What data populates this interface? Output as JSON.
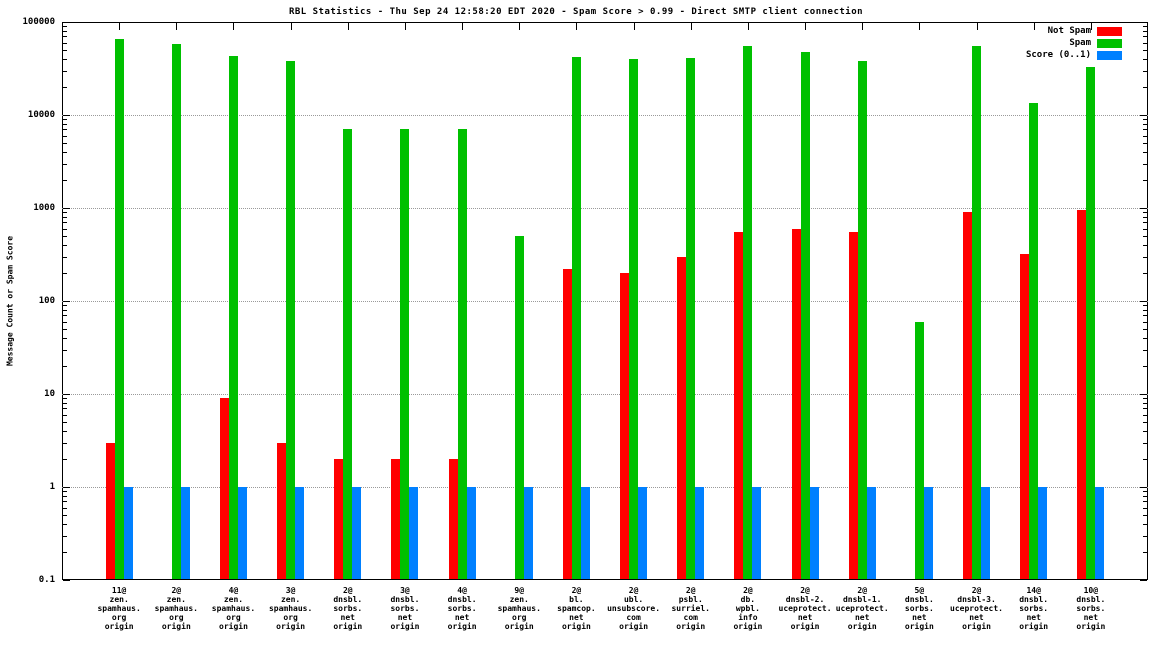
{
  "chart_data": {
    "type": "bar",
    "title": "RBL Statistics - Thu Sep 24 12:58:20 EDT 2020 - Spam Score > 0.99 - Direct SMTP client connection",
    "ylabel": "Message Count or Spam Score",
    "xlabel": "",
    "y_scale": "log",
    "ylim": [
      0.1,
      100000
    ],
    "yticks": [
      "0.1",
      "1",
      "10",
      "100",
      "1000",
      "10000",
      "100000"
    ],
    "grid": true,
    "legend_position": "top-right",
    "categories": [
      [
        "11@",
        "zen.",
        "spamhaus.",
        "org",
        "origin"
      ],
      [
        "2@",
        "zen.",
        "spamhaus.",
        "org",
        "origin"
      ],
      [
        "4@",
        "zen.",
        "spamhaus.",
        "org",
        "origin"
      ],
      [
        "3@",
        "zen.",
        "spamhaus.",
        "org",
        "origin"
      ],
      [
        "2@",
        "dnsbl.",
        "sorbs.",
        "net",
        "origin"
      ],
      [
        "3@",
        "dnsbl.",
        "sorbs.",
        "net",
        "origin"
      ],
      [
        "4@",
        "dnsbl.",
        "sorbs.",
        "net",
        "origin"
      ],
      [
        "9@",
        "zen.",
        "spamhaus.",
        "org",
        "origin"
      ],
      [
        "2@",
        "bl.",
        "spamcop.",
        "net",
        "origin"
      ],
      [
        "2@",
        "ubl.",
        "unsubscore.",
        "com",
        "origin"
      ],
      [
        "2@",
        "psbl.",
        "surriel.",
        "com",
        "origin"
      ],
      [
        "2@",
        "db.",
        "wpbl.",
        "info",
        "origin"
      ],
      [
        "2@",
        "dnsbl-2.",
        "uceprotect.",
        "net",
        "origin"
      ],
      [
        "2@",
        "dnsbl-1.",
        "uceprotect.",
        "net",
        "origin"
      ],
      [
        "5@",
        "dnsbl.",
        "sorbs.",
        "net",
        "origin"
      ],
      [
        "2@",
        "dnsbl-3.",
        "uceprotect.",
        "net",
        "origin"
      ],
      [
        "14@",
        "dnsbl.",
        "sorbs.",
        "net",
        "origin"
      ],
      [
        "10@",
        "dnsbl.",
        "sorbs.",
        "net",
        "origin"
      ]
    ],
    "series": [
      {
        "name": "Not Spam",
        "color": "#ff0000",
        "values": [
          3,
          0,
          9,
          3,
          2,
          2,
          2,
          0,
          220,
          200,
          300,
          550,
          600,
          550,
          0,
          900,
          320,
          950
        ]
      },
      {
        "name": "Spam",
        "color": "#00c000",
        "values": [
          65000,
          58000,
          43000,
          38000,
          7000,
          7000,
          7000,
          500,
          42000,
          40000,
          41000,
          55000,
          48000,
          38000,
          60,
          55000,
          13500,
          33000
        ]
      },
      {
        "name": "Score (0..1)",
        "color": "#0080ff",
        "values": [
          1,
          1,
          1,
          1,
          1,
          1,
          1,
          1,
          1,
          1,
          1,
          1,
          1,
          1,
          1,
          1,
          1,
          1
        ]
      }
    ]
  }
}
